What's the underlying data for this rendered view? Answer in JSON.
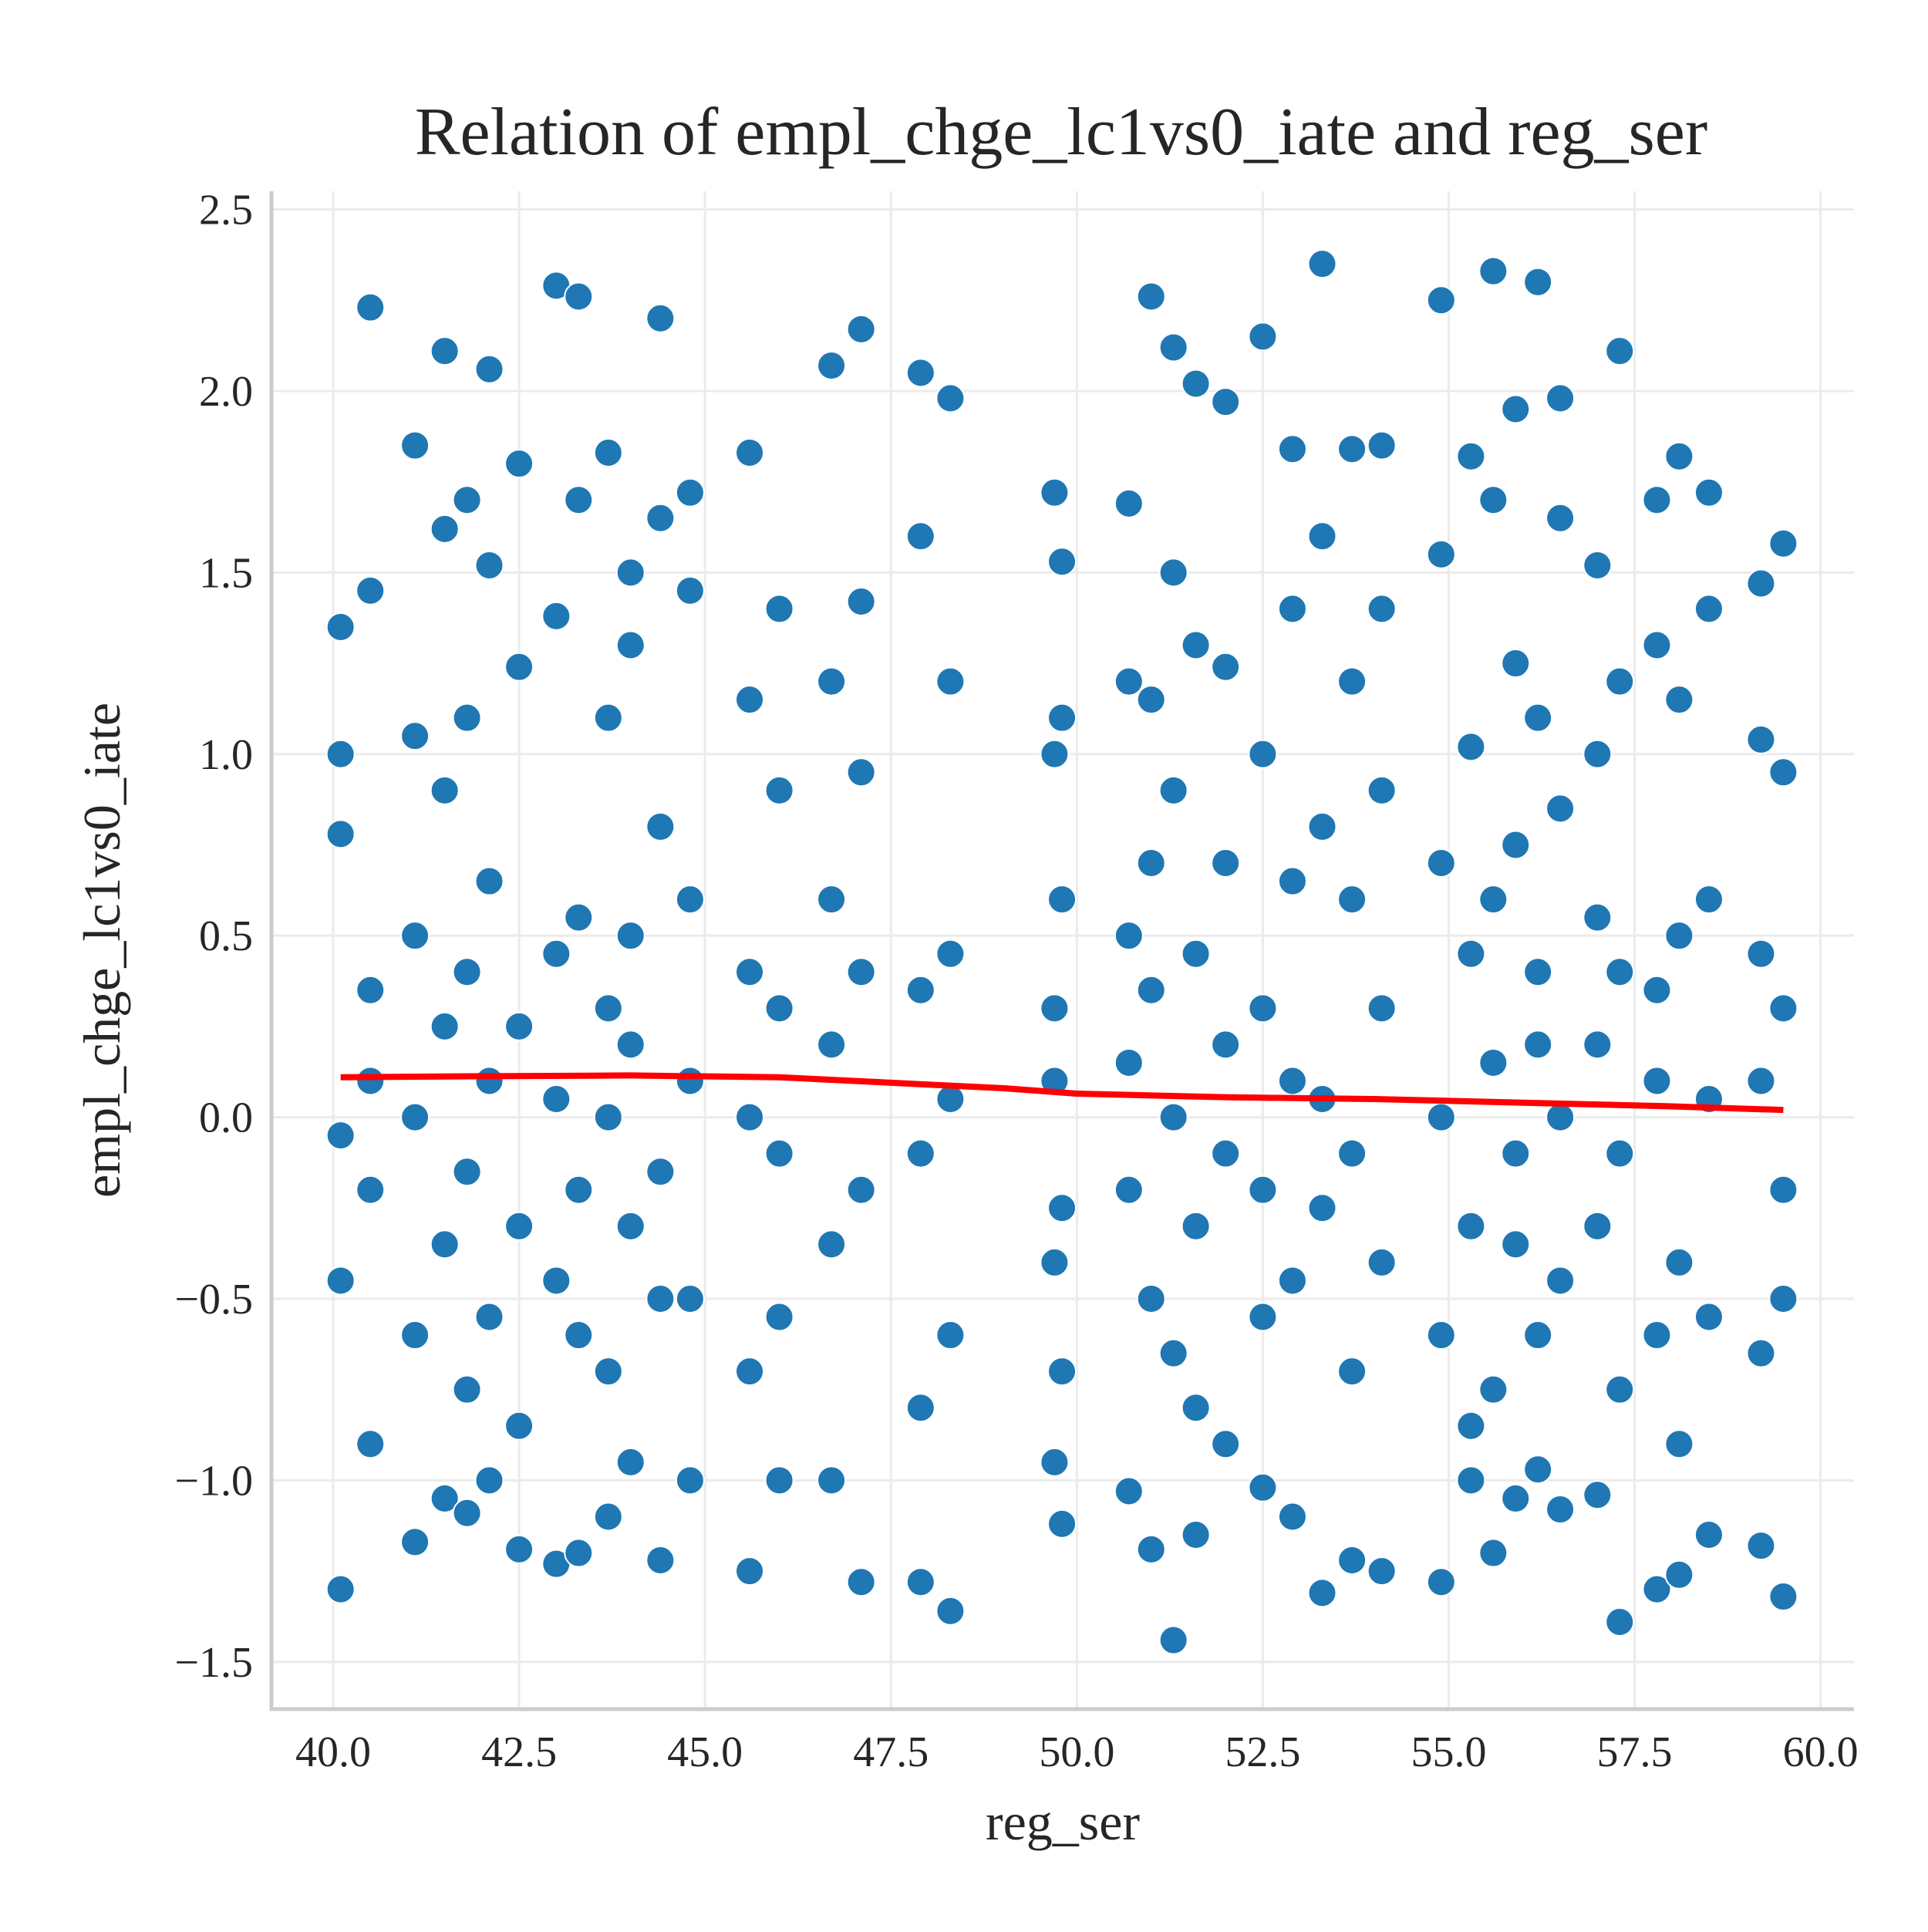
{
  "chart_data": {
    "type": "scatter",
    "title": "Relation of empl_chge_lc1vs0_iate and reg_ser",
    "x_label": "reg_ser",
    "y_label": "empl_chge_lc1vs0_iate",
    "xlim": [
      39.17,
      60.45
    ],
    "ylim": [
      -1.63,
      2.55
    ],
    "xticks": [
      {
        "value": 40,
        "label": "40.0"
      },
      {
        "value": 42.5,
        "label": "42.5"
      },
      {
        "value": 45,
        "label": "45.0"
      },
      {
        "value": 47.5,
        "label": "47.5"
      },
      {
        "value": 50,
        "label": "50.0"
      },
      {
        "value": 52.5,
        "label": "52.5"
      },
      {
        "value": 55,
        "label": "55.0"
      },
      {
        "value": 57.5,
        "label": "57.5"
      },
      {
        "value": 60,
        "label": "60.0"
      }
    ],
    "yticks": [
      {
        "value": -1.5,
        "label": "−1.5"
      },
      {
        "value": -1,
        "label": "−1.0"
      },
      {
        "value": -0.5,
        "label": "−0.5"
      },
      {
        "value": 0,
        "label": "0.0"
      },
      {
        "value": 0.5,
        "label": "0.5"
      },
      {
        "value": 1,
        "label": "1.0"
      },
      {
        "value": 1.5,
        "label": "1.5"
      },
      {
        "value": 2,
        "label": "2.0"
      },
      {
        "value": 2.5,
        "label": "2.5"
      }
    ],
    "grid": true,
    "series": [
      {
        "kind": "scatter",
        "color": "#1f77b4",
        "x": [
          40.1,
          40.1,
          40.1,
          40.1,
          40.1,
          40.1,
          40.5,
          40.5,
          40.5,
          40.5,
          40.5,
          40.5,
          41.1,
          41.1,
          41.1,
          41.1,
          41.1,
          41.1,
          41.5,
          41.5,
          41.5,
          41.5,
          41.5,
          41.5,
          41.8,
          41.8,
          41.8,
          41.8,
          41.8,
          41.8,
          42.1,
          42.1,
          42.1,
          42.1,
          42.1,
          42.1,
          42.5,
          42.5,
          42.5,
          42.5,
          42.5,
          42.5,
          43.0,
          43.0,
          43.0,
          43.0,
          43.0,
          43.0,
          43.3,
          43.3,
          43.3,
          43.3,
          43.3,
          43.3,
          43.7,
          43.7,
          43.7,
          43.7,
          43.7,
          43.7,
          44.0,
          44.0,
          44.0,
          44.0,
          44.0,
          44.0,
          44.4,
          44.4,
          44.4,
          44.4,
          44.4,
          44.4,
          44.8,
          44.8,
          44.8,
          44.8,
          44.8,
          44.8,
          45.6,
          45.6,
          45.6,
          45.6,
          45.6,
          45.6,
          46.0,
          46.0,
          46.0,
          46.0,
          46.0,
          46.0,
          46.7,
          46.7,
          46.7,
          46.7,
          46.7,
          46.7,
          47.1,
          47.1,
          47.1,
          47.1,
          47.1,
          47.1,
          47.9,
          47.9,
          47.9,
          47.9,
          47.9,
          47.9,
          48.3,
          48.3,
          48.3,
          48.3,
          48.3,
          48.3,
          49.7,
          49.7,
          49.7,
          49.7,
          49.7,
          49.7,
          49.8,
          49.8,
          49.8,
          49.8,
          49.8,
          49.8,
          50.7,
          50.7,
          50.7,
          50.7,
          50.7,
          50.7,
          51.0,
          51.0,
          51.0,
          51.0,
          51.0,
          51.0,
          51.3,
          51.3,
          51.3,
          51.3,
          51.3,
          51.3,
          51.6,
          51.6,
          51.6,
          51.6,
          51.6,
          51.6,
          52.0,
          52.0,
          52.0,
          52.0,
          52.0,
          52.0,
          52.5,
          52.5,
          52.5,
          52.5,
          52.5,
          52.5,
          52.9,
          52.9,
          52.9,
          52.9,
          52.9,
          52.9,
          53.3,
          53.3,
          53.3,
          53.3,
          53.3,
          53.3,
          53.7,
          53.7,
          53.7,
          53.7,
          53.7,
          53.7,
          54.1,
          54.1,
          54.1,
          54.1,
          54.1,
          54.1,
          54.9,
          54.9,
          54.9,
          54.9,
          54.9,
          54.9,
          55.3,
          55.3,
          55.3,
          55.3,
          55.3,
          55.3,
          55.6,
          55.6,
          55.6,
          55.6,
          55.6,
          55.6,
          55.9,
          55.9,
          55.9,
          55.9,
          55.9,
          55.9,
          56.2,
          56.2,
          56.2,
          56.2,
          56.2,
          56.2,
          56.5,
          56.5,
          56.5,
          56.5,
          56.5,
          56.5,
          57.0,
          57.0,
          57.0,
          57.0,
          57.0,
          57.0,
          57.3,
          57.3,
          57.3,
          57.3,
          57.3,
          57.3,
          57.8,
          57.8,
          57.8,
          57.8,
          57.8,
          57.8,
          58.1,
          58.1,
          58.1,
          58.1,
          58.1,
          58.1,
          58.5,
          58.5,
          58.5,
          58.5,
          58.5,
          58.5,
          59.2,
          59.2,
          59.2,
          59.2,
          59.2,
          59.2,
          59.5,
          59.5,
          59.5,
          59.5,
          59.5,
          59.5
        ],
        "values": [
          1.35,
          -1.3,
          -0.45,
          0.78,
          -0.05,
          1.0,
          2.23,
          0.35,
          -0.9,
          1.45,
          -0.2,
          0.1,
          1.85,
          -1.17,
          0.5,
          -0.6,
          1.05,
          0.0,
          2.11,
          -0.35,
          0.9,
          -1.05,
          1.62,
          0.25,
          1.7,
          -0.75,
          0.4,
          -0.15,
          1.1,
          -1.09,
          2.06,
          -0.55,
          0.65,
          1.52,
          -1.0,
          0.1,
          1.8,
          -1.19,
          -0.3,
          0.25,
          1.24,
          -0.85,
          2.29,
          -1.23,
          0.45,
          -0.45,
          1.38,
          0.05,
          2.26,
          -1.2,
          1.7,
          0.55,
          -0.6,
          -0.2,
          1.83,
          -0.7,
          0.3,
          1.1,
          -1.1,
          0.0,
          1.5,
          -0.95,
          0.5,
          -0.3,
          1.3,
          0.2,
          2.2,
          -1.22,
          0.8,
          -0.15,
          1.65,
          -0.5,
          1.72,
          -1.0,
          0.6,
          -0.5,
          1.45,
          0.1,
          1.83,
          -1.25,
          0.4,
          -0.7,
          1.15,
          0.0,
          1.4,
          -1.0,
          0.9,
          -0.55,
          0.3,
          -0.1,
          2.07,
          -1.0,
          0.6,
          -0.35,
          1.2,
          0.2,
          2.17,
          -1.28,
          0.95,
          -0.2,
          1.42,
          0.4,
          2.05,
          -1.28,
          0.35,
          -0.8,
          1.6,
          -0.1,
          1.98,
          -1.36,
          0.45,
          -0.6,
          1.2,
          0.05,
          1.72,
          -0.95,
          0.3,
          -0.4,
          1.0,
          0.1,
          1.53,
          -1.12,
          0.6,
          -0.7,
          1.1,
          -0.25,
          1.69,
          -1.03,
          0.5,
          -0.2,
          1.2,
          0.15,
          2.26,
          -1.19,
          0.7,
          -0.5,
          1.15,
          0.35,
          2.12,
          -1.44,
          0.9,
          -0.65,
          1.5,
          0.0,
          2.02,
          -1.15,
          0.45,
          -0.3,
          1.3,
          -0.8,
          1.97,
          -0.9,
          0.7,
          -0.1,
          1.24,
          0.2,
          2.15,
          -1.02,
          0.3,
          -0.55,
          1.0,
          -0.2,
          1.84,
          -1.1,
          0.65,
          -0.45,
          1.4,
          0.1,
          2.35,
          -1.31,
          0.8,
          -0.25,
          1.6,
          0.05,
          1.84,
          -1.22,
          0.6,
          -0.7,
          1.2,
          -0.1,
          1.85,
          -1.25,
          0.9,
          -0.4,
          1.4,
          0.3,
          2.25,
          -1.28,
          0.7,
          -0.6,
          1.55,
          0.0,
          1.82,
          -0.85,
          0.45,
          -0.3,
          1.02,
          -1.0,
          2.33,
          -1.2,
          0.6,
          -0.75,
          1.7,
          0.15,
          1.95,
          -1.05,
          0.75,
          -0.35,
          1.25,
          -0.1,
          2.3,
          -0.97,
          0.4,
          -0.6,
          1.1,
          0.2,
          1.98,
          -1.08,
          0.85,
          -0.45,
          1.65,
          0.0,
          1.52,
          -1.04,
          0.55,
          -0.3,
          1.0,
          0.2,
          2.11,
          -1.39,
          0.4,
          -0.75,
          1.2,
          -0.1,
          1.7,
          -1.3,
          0.35,
          -0.6,
          1.3,
          0.1,
          1.82,
          -1.26,
          0.5,
          -0.4,
          1.15,
          -0.9,
          1.72,
          -1.15,
          0.6,
          -0.55,
          1.4,
          0.05,
          1.47,
          -1.18,
          0.45,
          -0.65,
          1.04,
          0.1,
          1.58,
          -1.32,
          0.3,
          -0.5,
          0.95,
          -0.2
        ]
      },
      {
        "kind": "line",
        "color": "#ff0000",
        "x": [
          40.1,
          42,
          44,
          46,
          47,
          48,
          49,
          50,
          52,
          54,
          56,
          58,
          59.5
        ],
        "values": [
          0.11,
          0.113,
          0.115,
          0.11,
          0.1,
          0.09,
          0.08,
          0.065,
          0.055,
          0.05,
          0.04,
          0.03,
          0.02
        ]
      }
    ]
  }
}
